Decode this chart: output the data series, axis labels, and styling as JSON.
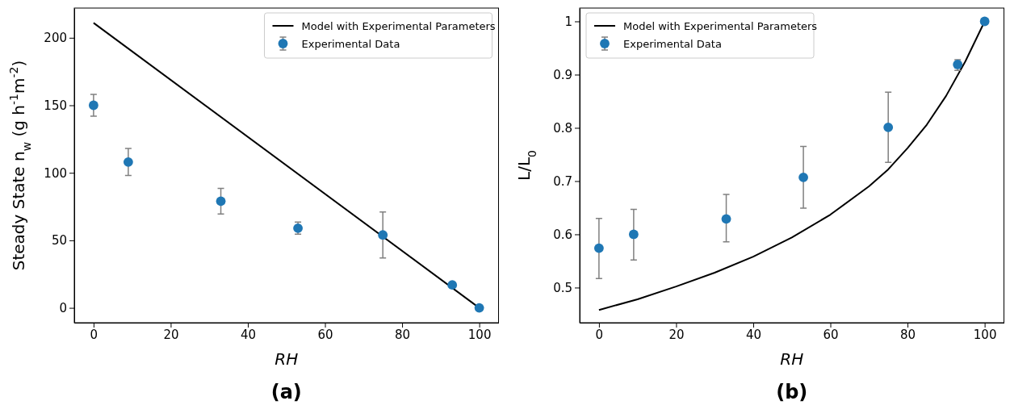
{
  "chart_data": [
    {
      "type": "scatter",
      "xlabel": "RH",
      "ylabel": "Steady State n$_{w}$ (g h$^{-1}$m$^{-2}$)",
      "annotations": [
        "(a)"
      ],
      "xlim": [
        -5,
        105
      ],
      "ylim": [
        -11,
        222
      ],
      "xticks": [
        0,
        20,
        40,
        60,
        80,
        100
      ],
      "yticks": [
        0,
        50,
        100,
        150,
        200
      ],
      "legend": "top right",
      "grid": false,
      "series": [
        {
          "name": "Model with Experimental Parameters",
          "type": "line",
          "color": "#000000",
          "x": [
            0,
            100
          ],
          "values": [
            211,
            0
          ],
          "line_style": "solid"
        },
        {
          "name": "Experimental Data",
          "type": "scatter",
          "color": "#1f77b4",
          "marker": "circle",
          "x": [
            0,
            9,
            33,
            53,
            75,
            93,
            100
          ],
          "values": [
            150,
            108,
            79,
            59,
            54,
            17,
            0
          ],
          "errors": [
            8,
            10,
            9.5,
            4.5,
            17,
            null,
            null
          ]
        }
      ]
    },
    {
      "type": "scatter",
      "xlabel": "RH",
      "ylabel": "L/L$_{0}$",
      "annotations": [
        "(b)"
      ],
      "xlim": [
        -5,
        105
      ],
      "ylim": [
        0.434,
        1.025
      ],
      "xticks": [
        0,
        20,
        40,
        60,
        80,
        100
      ],
      "yticks": [
        0.5,
        0.6,
        0.7,
        0.8,
        0.9,
        1.0
      ],
      "legend": "top left",
      "grid": false,
      "series": [
        {
          "name": "Model with Experimental Parameters",
          "type": "line",
          "color": "#000000",
          "x": [
            0,
            10,
            20,
            30,
            40,
            50,
            60,
            70,
            75,
            80,
            85,
            90,
            95,
            100
          ],
          "values": [
            0.458,
            0.478,
            0.502,
            0.528,
            0.558,
            0.594,
            0.637,
            0.69,
            0.722,
            0.762,
            0.806,
            0.86,
            0.925,
            1.0
          ],
          "line_style": "solid"
        },
        {
          "name": "Experimental Data",
          "type": "scatter",
          "color": "#1f77b4",
          "marker": "circle",
          "x": [
            0,
            9,
            33,
            53,
            75,
            93,
            100
          ],
          "values": [
            0.574,
            0.6,
            0.629,
            0.707,
            0.801,
            0.919,
            1.0
          ],
          "errors": [
            [
              0.517,
              0.63
            ],
            [
              0.552,
              0.647
            ],
            [
              0.586,
              0.675
            ],
            [
              0.649,
              0.765
            ],
            [
              0.735,
              0.867
            ],
            [
              0.908,
              0.928
            ],
            null
          ]
        }
      ]
    }
  ]
}
